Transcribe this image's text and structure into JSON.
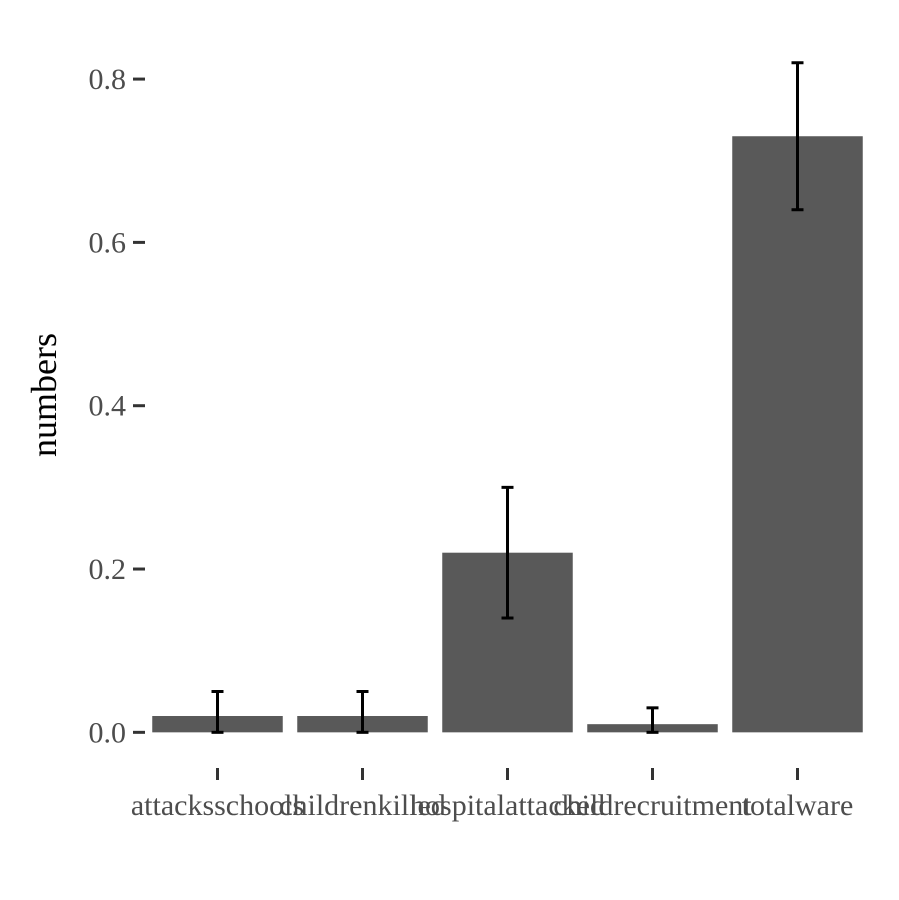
{
  "chart_data": {
    "type": "bar",
    "ylabel": "numbers",
    "xlabel": "",
    "categories": [
      "attacksschools",
      "childrenkilled",
      "hospitalattacked",
      "childrecruitment",
      "totalware"
    ],
    "values": [
      0.02,
      0.02,
      0.22,
      0.01,
      0.73
    ],
    "error_low": [
      0.0,
      0.0,
      0.14,
      0.0,
      0.64
    ],
    "error_high": [
      0.05,
      0.05,
      0.3,
      0.03,
      0.82
    ],
    "ylim": [
      -0.04,
      0.865
    ],
    "yticks": [
      "0.0",
      "0.2",
      "0.4",
      "0.6",
      "0.8"
    ],
    "ytick_values": [
      0,
      0.2,
      0.4,
      0.6,
      0.8
    ],
    "grid": false,
    "bar_color": "#595959"
  }
}
